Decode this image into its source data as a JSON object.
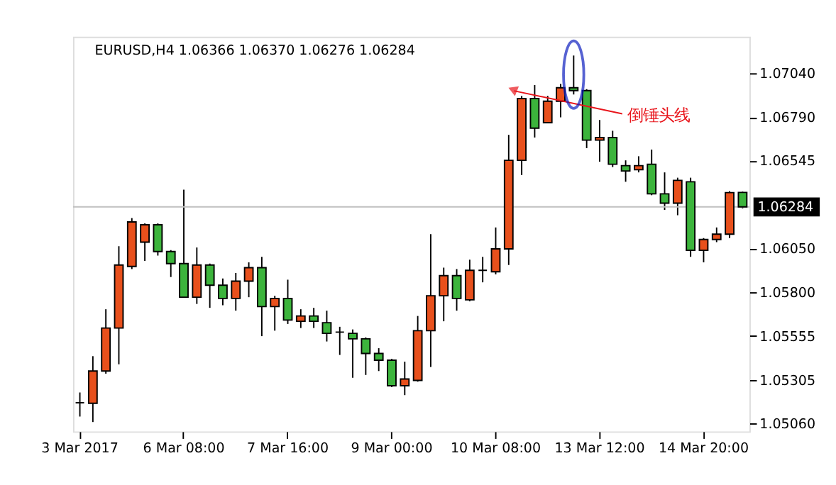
{
  "chart_data": {
    "type": "candlestick",
    "title": "EURUSD,H4  1.06366 1.06370 1.06276 1.06284",
    "annotations": [
      "倒锤头线"
    ],
    "categories": [
      "3 Mar 2017",
      null,
      null,
      null,
      null,
      null,
      null,
      null,
      "6 Mar 08:00",
      null,
      null,
      null,
      null,
      null,
      null,
      null,
      "7 Mar 16:00",
      null,
      null,
      null,
      null,
      null,
      null,
      null,
      "9 Mar 00:00",
      null,
      null,
      null,
      null,
      null,
      null,
      null,
      "10 Mar 08:00",
      null,
      null,
      null,
      null,
      null,
      null,
      null,
      "13 Mar 12:00",
      null,
      null,
      null,
      null,
      null,
      null,
      null,
      "14 Mar 20:00",
      null,
      null,
      null
    ],
    "ohlc": [
      [
        1.05178,
        1.05236,
        1.051,
        1.05178
      ],
      [
        1.05175,
        1.05441,
        1.05069,
        1.05357
      ],
      [
        1.05357,
        1.05706,
        1.05342,
        1.056
      ],
      [
        1.056,
        1.06062,
        1.05395,
        1.05956
      ],
      [
        1.05948,
        1.06221,
        1.05933,
        1.06199
      ],
      [
        1.06085,
        1.06191,
        1.05979,
        1.06183
      ],
      [
        1.06183,
        1.06191,
        1.06009,
        1.06032
      ],
      [
        1.06032,
        1.0604,
        1.05888,
        1.05964
      ],
      [
        1.05964,
        1.06381,
        1.05774,
        1.05774
      ],
      [
        1.05774,
        1.06055,
        1.05736,
        1.05956
      ],
      [
        1.05956,
        1.05964,
        1.05714,
        1.05842
      ],
      [
        1.05842,
        1.0588,
        1.05729,
        1.05767
      ],
      [
        1.05767,
        1.05911,
        1.05698,
        1.05865
      ],
      [
        1.05865,
        1.05971,
        1.05774,
        1.05941
      ],
      [
        1.05941,
        1.06002,
        1.05554,
        1.05721
      ],
      [
        1.05721,
        1.05782,
        1.05585,
        1.05767
      ],
      [
        1.05767,
        1.05873,
        1.05623,
        1.05645
      ],
      [
        1.05638,
        1.05706,
        1.056,
        1.05668
      ],
      [
        1.05668,
        1.05714,
        1.056,
        1.05638
      ],
      [
        1.0563,
        1.05698,
        1.05524,
        1.0557
      ],
      [
        1.05577,
        1.05607,
        1.05448,
        1.05577
      ],
      [
        1.0557,
        1.05592,
        1.05319,
        1.05539
      ],
      [
        1.05539,
        1.05547,
        1.05335,
        1.05456
      ],
      [
        1.05456,
        1.05486,
        1.05357,
        1.05418
      ],
      [
        1.05418,
        1.05426,
        1.05266,
        1.05274
      ],
      [
        1.05274,
        1.0541,
        1.05221,
        1.05312
      ],
      [
        1.05304,
        1.05668,
        1.05297,
        1.05585
      ],
      [
        1.05585,
        1.0613,
        1.0538,
        1.05782
      ],
      [
        1.05782,
        1.05941,
        1.05638,
        1.05896
      ],
      [
        1.05896,
        1.05933,
        1.05698,
        1.05767
      ],
      [
        1.05759,
        1.05986,
        1.05751,
        1.05926
      ],
      [
        1.05926,
        1.06002,
        1.05858,
        1.05926
      ],
      [
        1.05918,
        1.06168,
        1.05903,
        1.06047
      ],
      [
        1.06047,
        1.06691,
        1.05956,
        1.06547
      ],
      [
        1.06547,
        1.06911,
        1.06464,
        1.06896
      ],
      [
        1.06896,
        1.06972,
        1.06676,
        1.06729
      ],
      [
        1.0676,
        1.06911,
        1.0676,
        1.06881
      ],
      [
        1.06881,
        1.06979,
        1.0679,
        1.06957
      ],
      [
        1.06957,
        1.07139,
        1.06919,
        1.06941
      ],
      [
        1.06941,
        1.06949,
        1.06616,
        1.06661
      ],
      [
        1.06661,
        1.06775,
        1.0654,
        1.06676
      ],
      [
        1.06676,
        1.06714,
        1.06509,
        1.06525
      ],
      [
        1.06517,
        1.06547,
        1.06426,
        1.06487
      ],
      [
        1.06494,
        1.0657,
        1.06479,
        1.06517
      ],
      [
        1.06525,
        1.06608,
        1.0635,
        1.06358
      ],
      [
        1.06358,
        1.06479,
        1.06267,
        1.06305
      ],
      [
        1.06305,
        1.06449,
        1.06237,
        1.06434
      ],
      [
        1.06426,
        1.06449,
        1.06002,
        1.06039
      ],
      [
        1.06039,
        1.06108,
        1.05971,
        1.061
      ],
      [
        1.061,
        1.06168,
        1.06085,
        1.0613
      ],
      [
        1.0613,
        1.06373,
        1.06108,
        1.06365
      ],
      [
        1.06366,
        1.0637,
        1.06276,
        1.06284
      ]
    ],
    "colors": [
      "#000000",
      "#e8501c",
      "#e8501c",
      "#e8501c",
      "#e8501c",
      "#e8501c",
      "#3cb43c",
      "#3cb43c",
      "#3cb43c",
      "#e8501c",
      "#3cb43c",
      "#3cb43c",
      "#e8501c",
      "#e8501c",
      "#3cb43c",
      "#e8501c",
      "#3cb43c",
      "#e8501c",
      "#3cb43c",
      "#3cb43c",
      "#000000",
      "#3cb43c",
      "#3cb43c",
      "#3cb43c",
      "#3cb43c",
      "#e8501c",
      "#e8501c",
      "#e8501c",
      "#e8501c",
      "#3cb43c",
      "#e8501c",
      "#000000",
      "#e8501c",
      "#e8501c",
      "#e8501c",
      "#3cb43c",
      "#e8501c",
      "#e8501c",
      "#3cb43c",
      "#3cb43c",
      "#e8501c",
      "#3cb43c",
      "#3cb43c",
      "#e8501c",
      "#3cb43c",
      "#3cb43c",
      "#e8501c",
      "#3cb43c",
      "#e8501c",
      "#e8501c",
      "#e8501c",
      "#3cb43c"
    ],
    "ylim": [
      1.05016,
      1.07245
    ],
    "yticks": [
      {
        "value": 1.0704,
        "label": "1.07040"
      },
      {
        "value": 1.0679,
        "label": "1.06790"
      },
      {
        "value": 1.06545,
        "label": "1.06545"
      },
      {
        "value": 1.0605,
        "label": "1.06050"
      },
      {
        "value": 1.058,
        "label": "1.05800"
      },
      {
        "value": 1.05555,
        "label": "1.05555"
      },
      {
        "value": 1.05305,
        "label": "1.05305"
      },
      {
        "value": 1.0506,
        "label": "1.05060"
      }
    ],
    "ref_lines": [
      {
        "axis": "y",
        "value": 1.06284,
        "label": "1.06284",
        "color": "#c0c0c0"
      }
    ],
    "grid": false
  }
}
